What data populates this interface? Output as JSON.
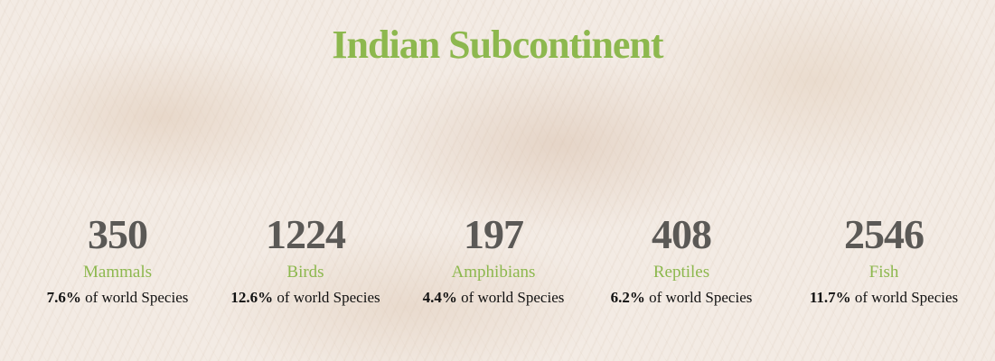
{
  "header": {
    "title": "Indian Subcontinent"
  },
  "stats": [
    {
      "count": 350,
      "label": "Mammals",
      "share": "7.6%",
      "suffix": "of world Species"
    },
    {
      "count": 1224,
      "label": "Birds",
      "share": "12.6%",
      "suffix": "of world Species"
    },
    {
      "count": 197,
      "label": "Amphibians",
      "share": "4.4%",
      "suffix": "of world Species"
    },
    {
      "count": 408,
      "label": "Reptiles",
      "share": "6.2%",
      "suffix": "of world Species"
    },
    {
      "count": 2546,
      "label": "Fish",
      "share": "11.7%",
      "suffix": "of world Species"
    }
  ]
}
